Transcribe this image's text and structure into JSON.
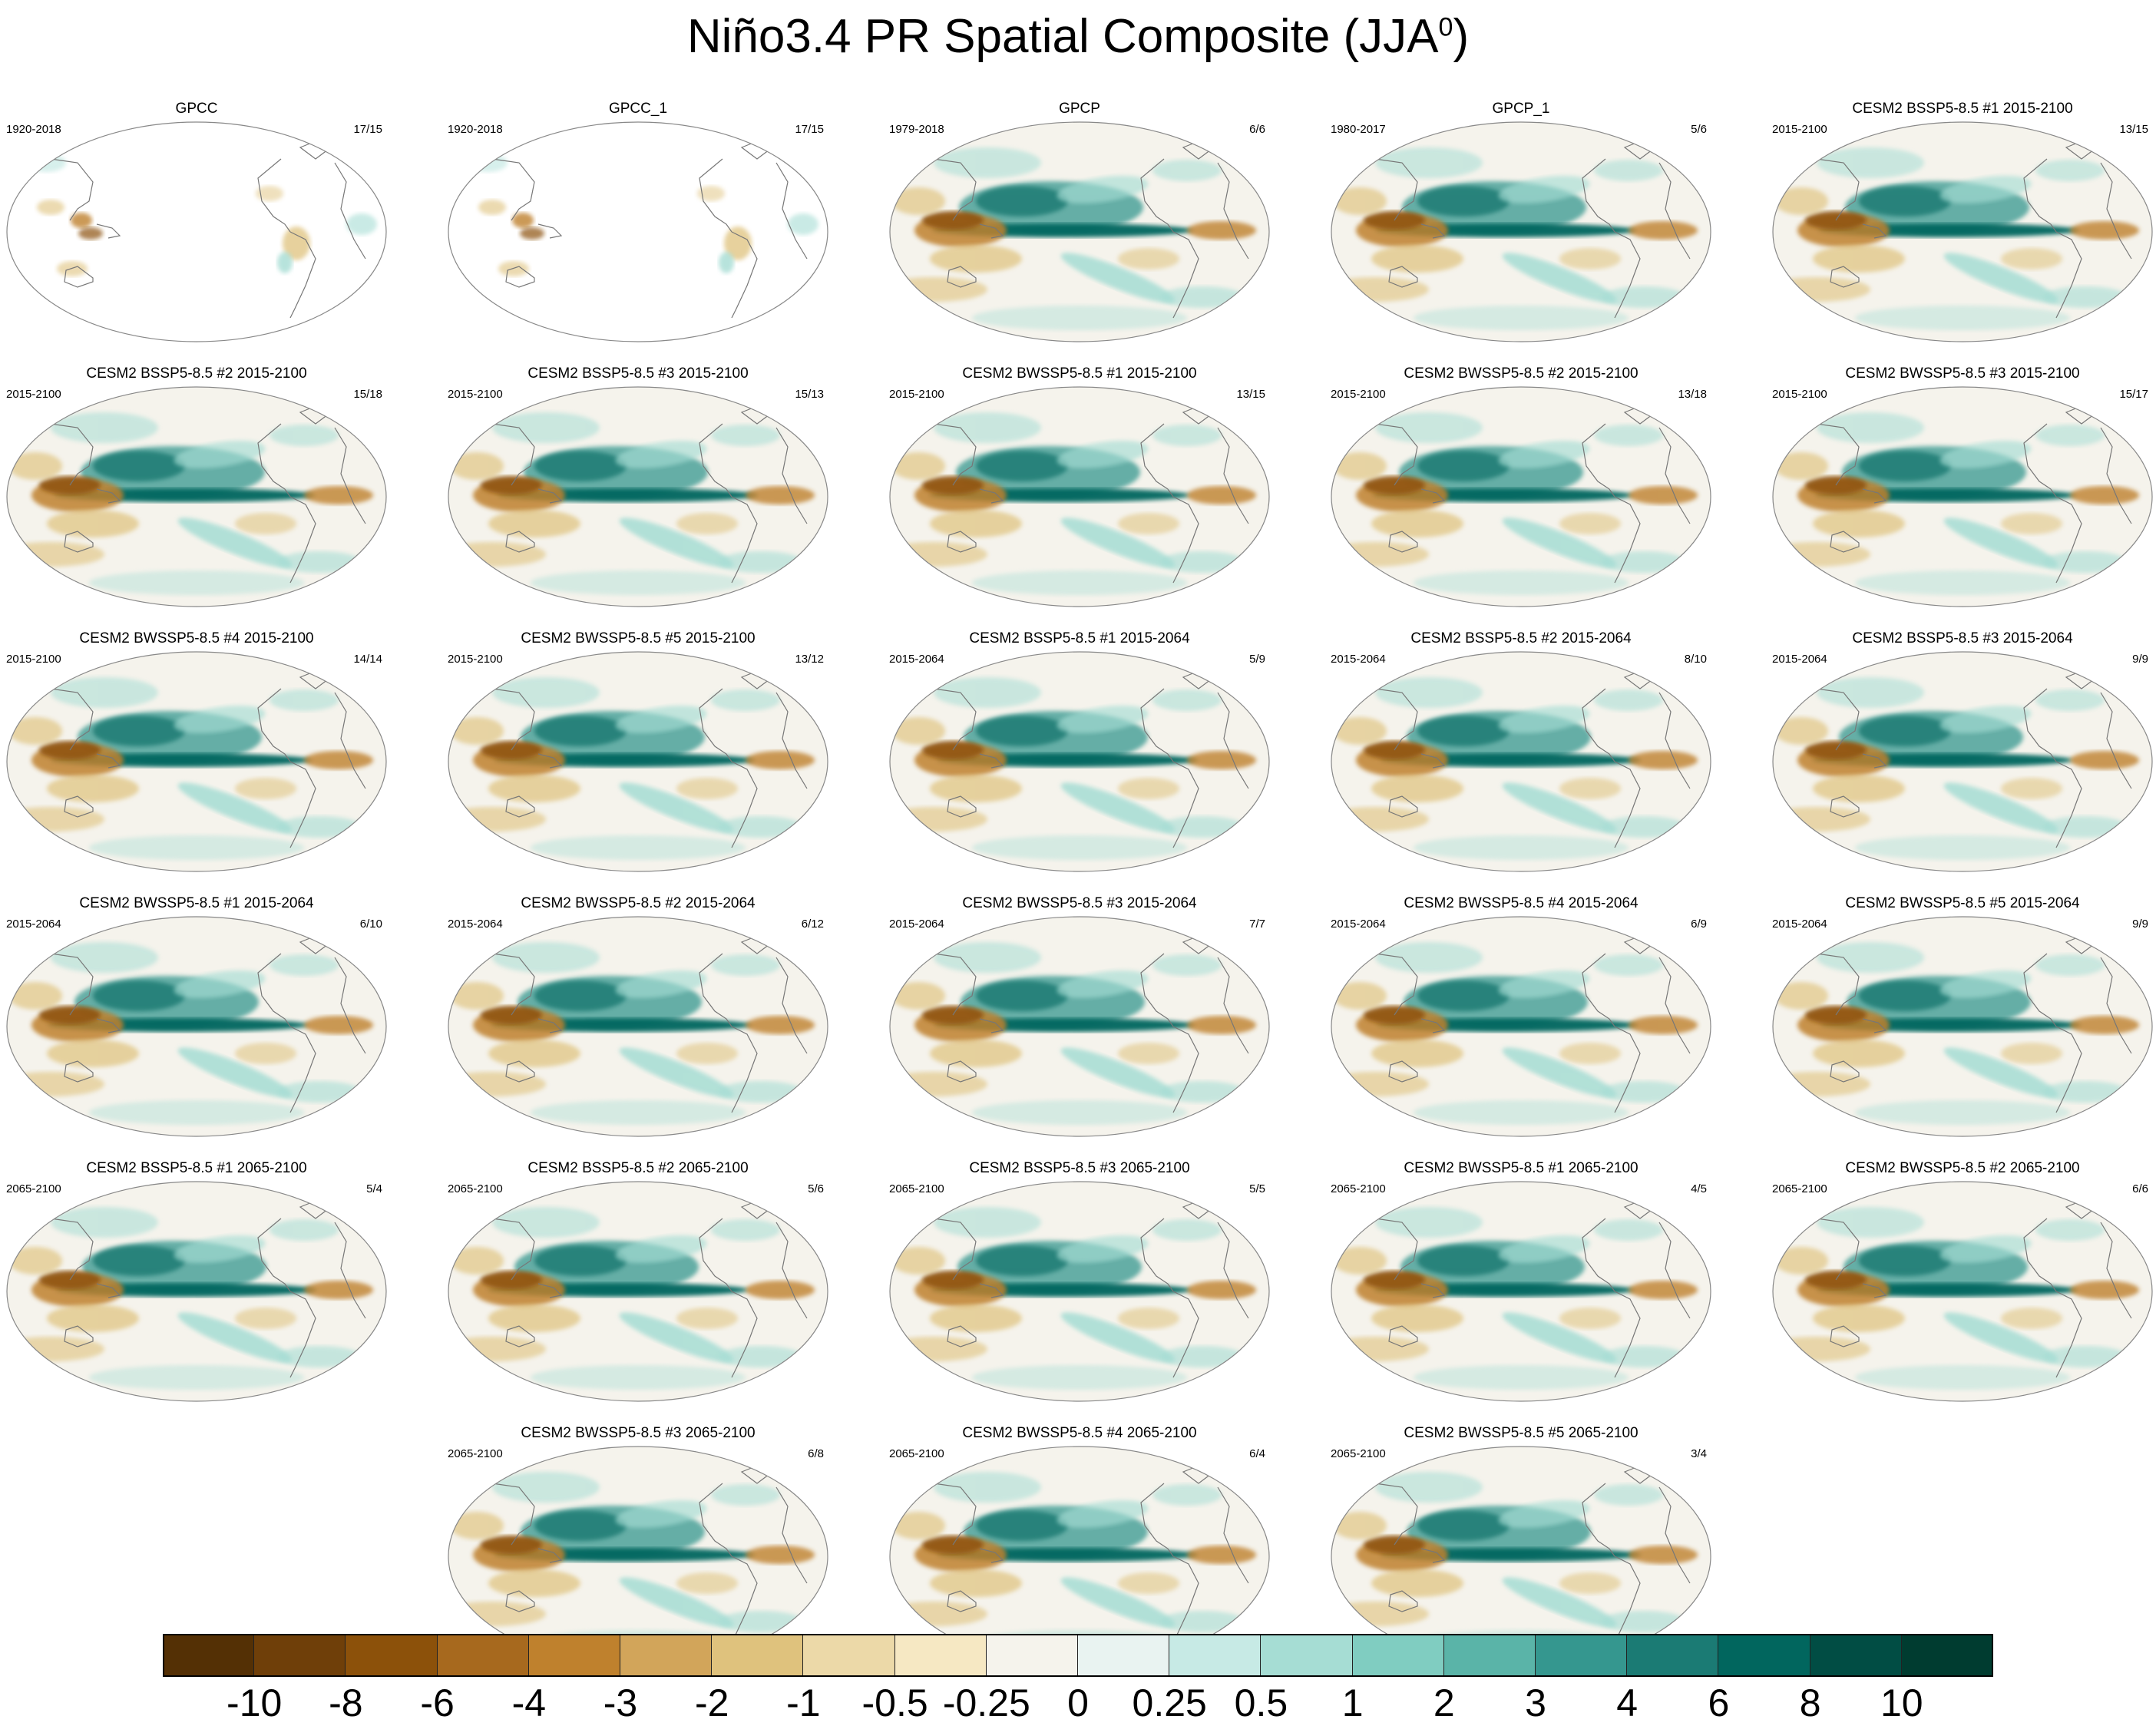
{
  "title_main": "Niño3.4 PR Spatial Composite (JJA",
  "title_sup": "0",
  "title_close": ")",
  "panels": [
    {
      "title": "GPCC",
      "period": "1920-2018",
      "count": "17/15",
      "ocean": false
    },
    {
      "title": "GPCC_1",
      "period": "1920-2018",
      "count": "17/15",
      "ocean": false
    },
    {
      "title": "GPCP",
      "period": "1979-2018",
      "count": "6/6",
      "ocean": true
    },
    {
      "title": "GPCP_1",
      "period": "1980-2017",
      "count": "5/6",
      "ocean": true
    },
    {
      "title": "CESM2 BSSP5-8.5 #1 2015-2100",
      "period": "2015-2100",
      "count": "13/15",
      "ocean": true
    },
    {
      "title": "CESM2 BSSP5-8.5 #2 2015-2100",
      "period": "2015-2100",
      "count": "15/18",
      "ocean": true
    },
    {
      "title": "CESM2 BSSP5-8.5 #3 2015-2100",
      "period": "2015-2100",
      "count": "15/13",
      "ocean": true
    },
    {
      "title": "CESM2 BWSSP5-8.5 #1 2015-2100",
      "period": "2015-2100",
      "count": "13/15",
      "ocean": true
    },
    {
      "title": "CESM2 BWSSP5-8.5 #2 2015-2100",
      "period": "2015-2100",
      "count": "13/18",
      "ocean": true
    },
    {
      "title": "CESM2 BWSSP5-8.5 #3 2015-2100",
      "period": "2015-2100",
      "count": "15/17",
      "ocean": true
    },
    {
      "title": "CESM2 BWSSP5-8.5 #4 2015-2100",
      "period": "2015-2100",
      "count": "14/14",
      "ocean": true
    },
    {
      "title": "CESM2 BWSSP5-8.5 #5 2015-2100",
      "period": "2015-2100",
      "count": "13/12",
      "ocean": true
    },
    {
      "title": "CESM2 BSSP5-8.5 #1 2015-2064",
      "period": "2015-2064",
      "count": "5/9",
      "ocean": true
    },
    {
      "title": "CESM2 BSSP5-8.5 #2 2015-2064",
      "period": "2015-2064",
      "count": "8/10",
      "ocean": true
    },
    {
      "title": "CESM2 BSSP5-8.5 #3 2015-2064",
      "period": "2015-2064",
      "count": "9/9",
      "ocean": true
    },
    {
      "title": "CESM2 BWSSP5-8.5 #1 2015-2064",
      "period": "2015-2064",
      "count": "6/10",
      "ocean": true
    },
    {
      "title": "CESM2 BWSSP5-8.5 #2 2015-2064",
      "period": "2015-2064",
      "count": "6/12",
      "ocean": true
    },
    {
      "title": "CESM2 BWSSP5-8.5 #3 2015-2064",
      "period": "2015-2064",
      "count": "7/7",
      "ocean": true
    },
    {
      "title": "CESM2 BWSSP5-8.5 #4 2015-2064",
      "period": "2015-2064",
      "count": "6/9",
      "ocean": true
    },
    {
      "title": "CESM2 BWSSP5-8.5 #5 2015-2064",
      "period": "2015-2064",
      "count": "9/9",
      "ocean": true
    },
    {
      "title": "CESM2 BSSP5-8.5 #1 2065-2100",
      "period": "2065-2100",
      "count": "5/4",
      "ocean": true
    },
    {
      "title": "CESM2 BSSP5-8.5 #2 2065-2100",
      "period": "2065-2100",
      "count": "5/6",
      "ocean": true
    },
    {
      "title": "CESM2 BSSP5-8.5 #3 2065-2100",
      "period": "2065-2100",
      "count": "5/5",
      "ocean": true
    },
    {
      "title": "CESM2 BWSSP5-8.5 #1 2065-2100",
      "period": "2065-2100",
      "count": "4/5",
      "ocean": true
    },
    {
      "title": "CESM2 BWSSP5-8.5 #2 2065-2100",
      "period": "2065-2100",
      "count": "6/6",
      "ocean": true
    },
    {
      "title": "CESM2 BWSSP5-8.5 #3 2065-2100",
      "period": "2065-2100",
      "count": "6/8",
      "ocean": true
    },
    {
      "title": "CESM2 BWSSP5-8.5 #4 2065-2100",
      "period": "2065-2100",
      "count": "6/4",
      "ocean": true
    },
    {
      "title": "CESM2 BWSSP5-8.5 #5 2065-2100",
      "period": "2065-2100",
      "count": "3/4",
      "ocean": true
    }
  ],
  "colorbar": {
    "labels": [
      "-10",
      "-8",
      "-6",
      "-4",
      "-3",
      "-2",
      "-1",
      "-0.5",
      "-0.25",
      "0",
      "0.25",
      "0.5",
      "1",
      "2",
      "3",
      "4",
      "6",
      "8",
      "10"
    ],
    "colors": [
      "#543005",
      "#6f3f09",
      "#8c510a",
      "#a7691e",
      "#bf812d",
      "#d2a55a",
      "#dfc27d",
      "#ecd9a8",
      "#f6e8c3",
      "#f5f3ec",
      "#e9f3f1",
      "#c7eae5",
      "#a6ddd4",
      "#80cdc1",
      "#5ab4a8",
      "#35978f",
      "#1b7b74",
      "#01665e",
      "#014d44",
      "#003c30"
    ]
  },
  "colors": {
    "brown_dark": "#8c510a",
    "brown_mid": "#bf812d",
    "brown_light": "#dfc27d",
    "teal_light": "#a6ddd4",
    "teal_mid": "#35978f",
    "teal_dark": "#01665e",
    "neutral": "#f5f3ec",
    "coast": "#777777"
  }
}
